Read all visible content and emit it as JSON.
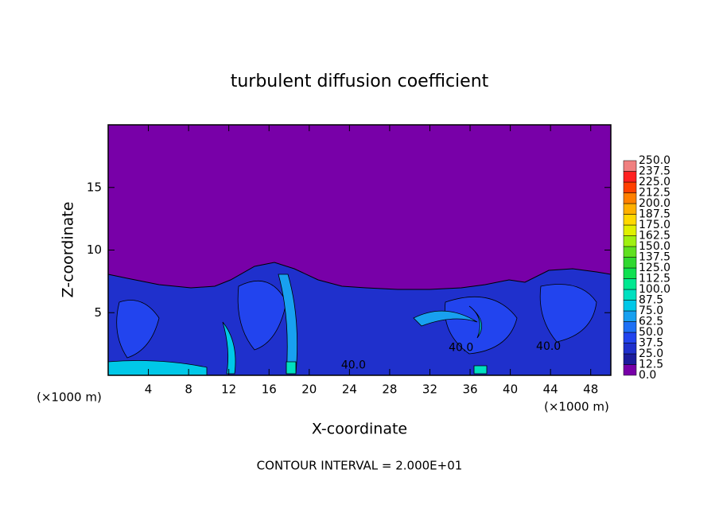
{
  "chart_data": {
    "type": "contour",
    "title": "turbulent diffusion coefficient",
    "x_label": "X-coordinate",
    "y_label": "Z-coordinate",
    "y_unit_label": "(×1000 m)",
    "x_unit_label": "(×1000 m)",
    "footer": "CONTOUR INTERVAL = 2.000E+01",
    "xlim": [
      0,
      50
    ],
    "ylim": [
      0,
      20
    ],
    "xticks": [
      4,
      8,
      12,
      16,
      20,
      24,
      28,
      32,
      36,
      40,
      44,
      48
    ],
    "yticks": [
      5,
      10,
      15
    ],
    "colorbar": {
      "levels": [
        {
          "value": 0,
          "label": "0.0"
        },
        {
          "value": 12.5,
          "label": "12.5"
        },
        {
          "value": 25,
          "label": "25.0"
        },
        {
          "value": 37.5,
          "label": "37.5"
        },
        {
          "value": 50,
          "label": "50.0"
        },
        {
          "value": 62.5,
          "label": "62.5"
        },
        {
          "value": 75,
          "label": "75.0"
        },
        {
          "value": 87.5,
          "label": "87.5"
        },
        {
          "value": 100,
          "label": "100.0"
        },
        {
          "value": 112.5,
          "label": "112.5"
        },
        {
          "value": 125,
          "label": "125.0"
        },
        {
          "value": 137.5,
          "label": "137.5"
        },
        {
          "value": 150,
          "label": "150.0"
        },
        {
          "value": 162.5,
          "label": "162.5"
        },
        {
          "value": 175,
          "label": "175.0"
        },
        {
          "value": 187.5,
          "label": "187.5"
        },
        {
          "value": 200,
          "label": "200.0"
        },
        {
          "value": 212.5,
          "label": "212.5"
        },
        {
          "value": 225,
          "label": "225.0"
        },
        {
          "value": 237.5,
          "label": "237.5"
        },
        {
          "value": 250,
          "label": "250.0"
        }
      ],
      "colors": [
        "#7800a8",
        "#1c1c9c",
        "#1f30cc",
        "#2244ee",
        "#1e70f5",
        "#18a0f0",
        "#00c8e8",
        "#00e0c0",
        "#00e890",
        "#10e050",
        "#30d830",
        "#60e020",
        "#a0f010",
        "#e0f000",
        "#ffd800",
        "#ffb000",
        "#ff8000",
        "#ff4000",
        "#ff2020",
        "#f08080"
      ]
    },
    "contour_labels": [
      {
        "value": 40,
        "label": "40.0",
        "x": 24.4,
        "z": 0.8
      },
      {
        "value": 40,
        "label": "40.0",
        "x": 35.1,
        "z": 2.2
      },
      {
        "value": 40,
        "label": "40.0",
        "x": 43.8,
        "z": 2.3
      }
    ]
  }
}
